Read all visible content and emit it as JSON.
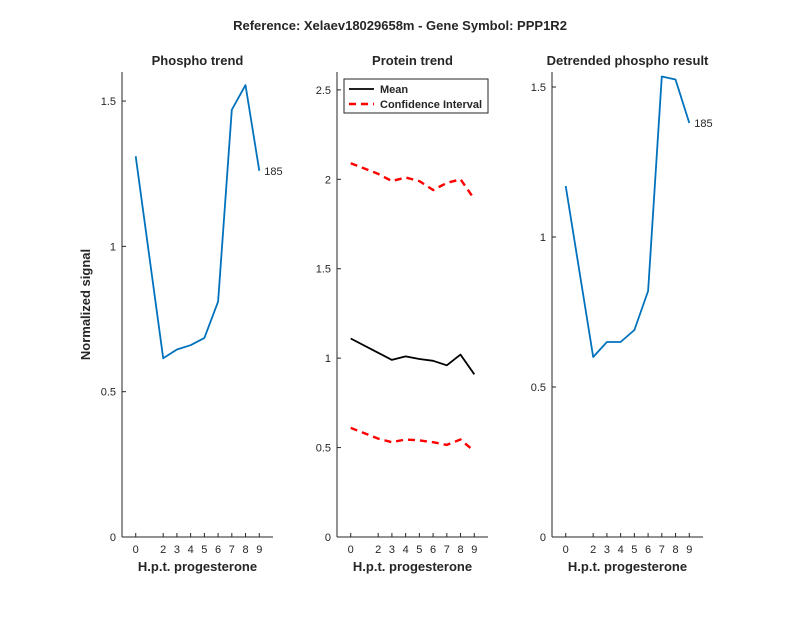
{
  "figure_title": "Reference:  Xelaev18029658m - Gene Symbol:  PPP1R2",
  "colors": {
    "phospho": "#0072bd",
    "mean": "#000000",
    "ci": "#ff0000",
    "axis": "#262626"
  },
  "chart_data": [
    {
      "type": "line",
      "title": "Phospho trend",
      "xlabel": "H.p.t. progesterone",
      "ylabel": "Normalized signal",
      "xlim": [
        -1,
        10
      ],
      "ylim": [
        0,
        1.6
      ],
      "xticks": [
        0,
        2,
        3,
        4,
        5,
        6,
        7,
        8,
        9
      ],
      "yticks": [
        0,
        0.5,
        1,
        1.5
      ],
      "ytick_labels": [
        "0",
        "0.5",
        "1",
        "1.5"
      ],
      "series": [
        {
          "x": [
            0,
            2,
            3,
            4,
            5,
            6,
            7,
            8,
            9
          ],
          "y": [
            1.31,
            0.615,
            0.645,
            0.66,
            0.685,
            0.81,
            1.47,
            1.555,
            1.26
          ],
          "color": "#0072bd",
          "style": "solid",
          "end_label": "185"
        }
      ]
    },
    {
      "type": "line",
      "title": "Protein trend",
      "xlabel": "H.p.t. progesterone",
      "ylabel": "",
      "xlim": [
        -1,
        10
      ],
      "ylim": [
        0,
        2.6
      ],
      "xticks": [
        0,
        2,
        3,
        4,
        5,
        6,
        7,
        8,
        9
      ],
      "yticks": [
        0,
        0.5,
        1,
        1.5,
        2,
        2.5
      ],
      "ytick_labels": [
        "0",
        "0.5",
        "1",
        "1.5",
        "2",
        "2.5"
      ],
      "legend": {
        "placement": "top-left",
        "entries": [
          "Mean",
          "Confidence Interval"
        ]
      },
      "series": [
        {
          "name": "Mean",
          "x": [
            0,
            2,
            3,
            4,
            5,
            6,
            7,
            8,
            9
          ],
          "y": [
            1.11,
            1.03,
            0.99,
            1.01,
            0.995,
            0.985,
            0.96,
            1.02,
            0.91
          ],
          "color": "#000000",
          "style": "solid"
        },
        {
          "name": "Confidence Interval",
          "x": [
            0,
            2,
            3,
            4,
            5,
            6,
            7,
            8,
            9
          ],
          "y": [
            2.09,
            2.03,
            1.99,
            2.01,
            1.99,
            1.94,
            1.98,
            2.0,
            1.89
          ],
          "color": "#ff0000",
          "style": "dashed"
        },
        {
          "name": "",
          "x": [
            0,
            2,
            3,
            4,
            5,
            6,
            7,
            8,
            9
          ],
          "y": [
            0.61,
            0.55,
            0.53,
            0.545,
            0.54,
            0.53,
            0.515,
            0.545,
            0.48
          ],
          "color": "#ff0000",
          "style": "dashed"
        }
      ]
    },
    {
      "type": "line",
      "title": "Detrended phospho result",
      "xlabel": "H.p.t. progesterone",
      "ylabel": "",
      "xlim": [
        -1,
        10
      ],
      "ylim": [
        0,
        1.55
      ],
      "xticks": [
        0,
        2,
        3,
        4,
        5,
        6,
        7,
        8,
        9
      ],
      "yticks": [
        0,
        0.5,
        1,
        1.5
      ],
      "ytick_labels": [
        "0",
        "0.5",
        "1",
        "1.5"
      ],
      "series": [
        {
          "x": [
            0,
            2,
            3,
            4,
            5,
            6,
            7,
            8,
            9
          ],
          "y": [
            1.17,
            0.6,
            0.65,
            0.65,
            0.69,
            0.82,
            1.535,
            1.525,
            1.38
          ],
          "color": "#0072bd",
          "style": "solid",
          "end_label": "185"
        }
      ]
    }
  ]
}
